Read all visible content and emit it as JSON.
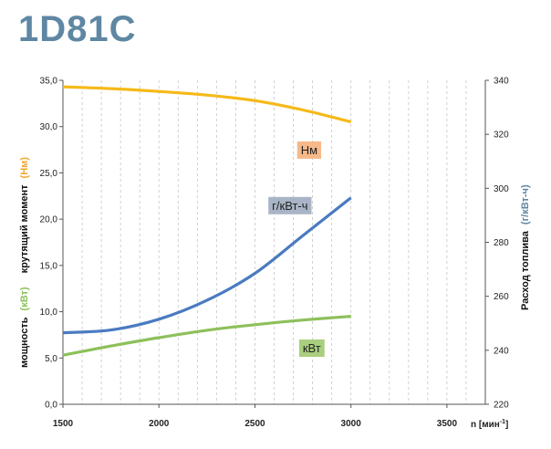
{
  "title": "1D81C",
  "chart_data": {
    "type": "line",
    "xlim": [
      1500,
      3700
    ],
    "xticks": [
      1500,
      2000,
      2500,
      3000,
      3500
    ],
    "xtick_labels": [
      "1500",
      "2000",
      "2500",
      "3000",
      "3500"
    ],
    "xlabel": {
      "base": "n [мин",
      "sup": "-1",
      "end": "]"
    },
    "ylim_left": [
      0,
      35
    ],
    "yticks_left": [
      "0,0",
      "5,0",
      "10,0",
      "15,0",
      "20,0",
      "25,0",
      "30,0",
      "35,0"
    ],
    "ylim_right": [
      220,
      340
    ],
    "yticks_right": [
      "220",
      "240",
      "260",
      "280",
      "300",
      "320",
      "340"
    ],
    "ylabel_left_top": {
      "text": "крутящий момент",
      "unit": "(Нм)",
      "unit_color": "#f0a830"
    },
    "ylabel_left_bottom": {
      "text": "мощность",
      "unit": "(кВт)",
      "unit_color": "#8dc05a"
    },
    "ylabel_right": {
      "text": "Расход топлива",
      "unit": "(г/кВт-ч)",
      "unit_color": "#5f87a3"
    },
    "grid": "vertical",
    "series": [
      {
        "name": "Нм",
        "axis": "left",
        "color": "#f5b919",
        "label_bg": "#f7b98a",
        "x": [
          1500,
          1750,
          2000,
          2250,
          2500,
          2750,
          3000
        ],
        "y": [
          34.3,
          34.1,
          33.8,
          33.4,
          32.8,
          31.8,
          30.5
        ]
      },
      {
        "name": "г/кВт-ч",
        "axis": "right",
        "color": "#4a7bc0",
        "label_bg": "#a9b5c6",
        "x": [
          1500,
          1750,
          2000,
          2250,
          2500,
          2750,
          3000
        ],
        "y": [
          246.5,
          247.5,
          251.5,
          258.5,
          268.5,
          282.5,
          296.5
        ]
      },
      {
        "name": "кВт",
        "axis": "left",
        "color": "#8dc05a",
        "label_bg": "#a9cf7e",
        "x": [
          1500,
          1750,
          2000,
          2250,
          2500,
          2750,
          3000
        ],
        "y": [
          5.3,
          6.3,
          7.2,
          8.0,
          8.6,
          9.1,
          9.5
        ]
      }
    ]
  }
}
